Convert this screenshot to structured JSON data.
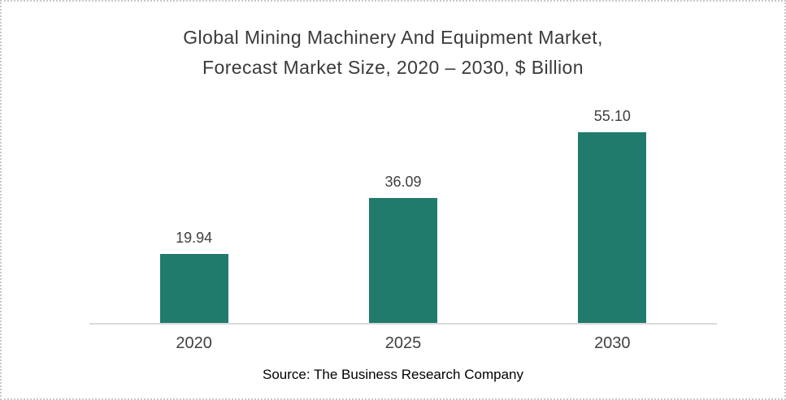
{
  "chart_data": {
    "type": "bar",
    "title": "Global Mining Machinery And Equipment Market, Forecast Market Size, 2020 – 2030, $ Billion",
    "title_lines": [
      "Global Mining Machinery And Equipment Market,",
      "Forecast Market Size, 2020 – 2030, $ Billion"
    ],
    "categories": [
      "2020",
      "2025",
      "2030"
    ],
    "values": [
      19.94,
      36.09,
      55.1
    ],
    "value_labels": [
      "19.94",
      "36.09",
      "55.10"
    ],
    "xlabel": "",
    "ylabel": "",
    "ylim": [
      0,
      55.1
    ],
    "grid": false,
    "legend": "none",
    "bar_color": "#217b6c",
    "label_color": "#404040",
    "title_color": "#3a3a3a",
    "axis_line_color": "#d9d9d9"
  },
  "footer": {
    "source": "Source: The Business Research Company"
  }
}
